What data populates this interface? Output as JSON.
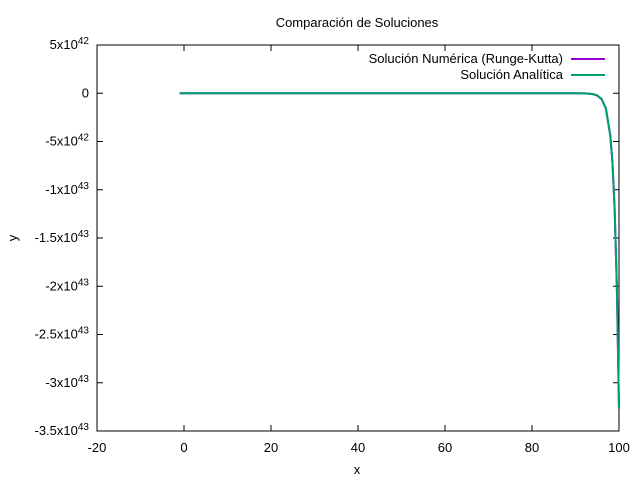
{
  "chart_data": {
    "type": "line",
    "title": "Comparación de Soluciones",
    "xlabel": "x",
    "ylabel": "y",
    "xlim": [
      -20,
      100
    ],
    "ylim": [
      -3.5e+43,
      5e+42
    ],
    "x_ticks": [
      {
        "value": -20,
        "label": "-20"
      },
      {
        "value": 0,
        "label": "0"
      },
      {
        "value": 20,
        "label": "20"
      },
      {
        "value": 40,
        "label": "40"
      },
      {
        "value": 60,
        "label": "60"
      },
      {
        "value": 80,
        "label": "80"
      },
      {
        "value": 100,
        "label": "100"
      }
    ],
    "y_ticks": [
      {
        "value": 5e+42,
        "mantissa": "5x10",
        "exp": "42"
      },
      {
        "value": 0,
        "mantissa": "0",
        "exp": ""
      },
      {
        "value": -5e+42,
        "mantissa": "-5x10",
        "exp": "42"
      },
      {
        "value": -1e+43,
        "mantissa": "-1x10",
        "exp": "43"
      },
      {
        "value": -1.5e+43,
        "mantissa": "-1.5x10",
        "exp": "43"
      },
      {
        "value": -2e+43,
        "mantissa": "-2x10",
        "exp": "43"
      },
      {
        "value": -2.5e+43,
        "mantissa": "-2.5x10",
        "exp": "43"
      },
      {
        "value": -3e+43,
        "mantissa": "-3x10",
        "exp": "43"
      },
      {
        "value": -3.5e+43,
        "mantissa": "-3.5x10",
        "exp": "43"
      }
    ],
    "grid": false,
    "legend_position": "top-right",
    "series": [
      {
        "name": "Solución Numérica (Runge-Kutta)",
        "color": "#9400d3",
        "x": [
          -1,
          10,
          20,
          30,
          40,
          50,
          60,
          70,
          80,
          85,
          88,
          90,
          92,
          93,
          94,
          95,
          96,
          97,
          98,
          98.5,
          99,
          99.5,
          100
        ],
        "y": [
          0,
          0,
          0,
          0,
          0,
          0,
          0,
          0,
          0,
          0,
          0,
          -2e+39,
          -1.5e+40,
          -3.6e+40,
          -9e+40,
          -2.3e+41,
          -6e+41,
          -1.6e+42,
          -4.4e+42,
          -7.2e+42,
          -1.2e+43,
          -2e+43,
          -3.27e+43
        ]
      },
      {
        "name": "Solución Analítica",
        "color": "#009e73",
        "x": [
          -1,
          10,
          20,
          30,
          40,
          50,
          60,
          70,
          80,
          85,
          88,
          90,
          92,
          93,
          94,
          95,
          96,
          97,
          98,
          98.5,
          99,
          99.5,
          100
        ],
        "y": [
          0,
          0,
          0,
          0,
          0,
          0,
          0,
          0,
          0,
          0,
          0,
          -2e+39,
          -1.5e+40,
          -3.6e+40,
          -9e+40,
          -2.3e+41,
          -6e+41,
          -1.6e+42,
          -4.4e+42,
          -7.2e+42,
          -1.2e+43,
          -2e+43,
          -3.27e+43
        ]
      }
    ]
  }
}
